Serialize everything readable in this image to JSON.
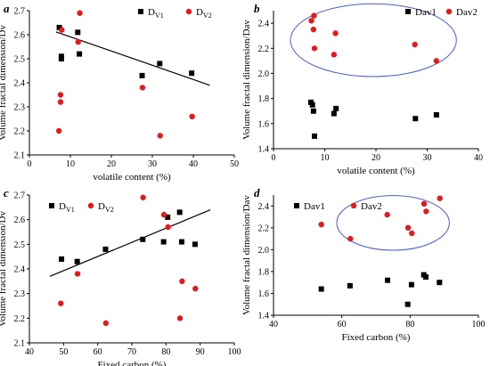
{
  "chart_data": [
    {
      "panel": "a",
      "type": "scatter",
      "xlabel": "volatile content (%)",
      "ylabel": "Volume fractal dimension/Dv",
      "xlim": [
        0,
        50
      ],
      "ylim": [
        2.1,
        2.7
      ],
      "xticks": [
        0,
        10,
        20,
        30,
        40,
        50
      ],
      "yticks": [
        2.1,
        2.2,
        2.3,
        2.4,
        2.5,
        2.6,
        2.7
      ],
      "grid": false,
      "legend": "top-right",
      "series": [
        {
          "name": "DV1",
          "marker": "square",
          "color": "#000000",
          "points": [
            [
              7.3,
              2.63
            ],
            [
              7.8,
              2.51
            ],
            [
              7.8,
              2.5
            ],
            [
              11.8,
              2.61
            ],
            [
              12.2,
              2.52
            ],
            [
              27.5,
              2.43
            ],
            [
              31.8,
              2.48
            ],
            [
              39.6,
              2.44
            ]
          ]
        },
        {
          "name": "DV2",
          "marker": "circle",
          "color": "#e41a1c",
          "points": [
            [
              7.2,
              2.2
            ],
            [
              7.6,
              2.32
            ],
            [
              7.6,
              2.35
            ],
            [
              7.9,
              2.62
            ],
            [
              11.9,
              2.57
            ],
            [
              12.3,
              2.69
            ],
            [
              27.6,
              2.38
            ],
            [
              31.9,
              2.18
            ],
            [
              39.7,
              2.26
            ]
          ]
        }
      ],
      "trendline": {
        "series": "DV1",
        "x": [
          6.5,
          44
        ],
        "y": [
          2.612,
          2.39
        ]
      }
    },
    {
      "panel": "b",
      "type": "scatter",
      "xlabel": "volatile content (%)",
      "ylabel": "Volume fractal dimension/Dav",
      "xlim": [
        0,
        40
      ],
      "ylim": [
        1.4,
        2.5
      ],
      "xticks": [
        0,
        10,
        20,
        30,
        40
      ],
      "yticks": [
        1.4,
        1.6,
        1.8,
        2.0,
        2.2,
        2.4
      ],
      "grid": false,
      "legend": "top-right",
      "series": [
        {
          "name": "Dav1",
          "marker": "square",
          "color": "#000000",
          "points": [
            [
              7.3,
              1.77
            ],
            [
              7.6,
              1.75
            ],
            [
              7.8,
              1.7
            ],
            [
              8.0,
              1.5
            ],
            [
              11.8,
              1.68
            ],
            [
              12.2,
              1.72
            ],
            [
              27.7,
              1.64
            ],
            [
              31.8,
              1.67
            ]
          ]
        },
        {
          "name": "Dav2",
          "marker": "circle",
          "color": "#e41a1c",
          "points": [
            [
              7.4,
              2.42
            ],
            [
              7.8,
              2.35
            ],
            [
              7.9,
              2.46
            ],
            [
              8.0,
              2.2
            ],
            [
              11.8,
              2.15
            ],
            [
              12.1,
              2.32
            ],
            [
              27.6,
              2.23
            ],
            [
              31.8,
              2.1
            ]
          ]
        }
      ],
      "highlight_ellipse": {
        "series": "Dav2",
        "center": [
          19.5,
          2.265
        ],
        "radii": [
          16.2,
          0.29
        ]
      }
    },
    {
      "panel": "c",
      "type": "scatter",
      "xlabel": "Fixed carbon (%)",
      "ylabel": "Volume fractal dimension/Dv",
      "xlim": [
        40,
        100
      ],
      "ylim": [
        2.1,
        2.7
      ],
      "xticks": [
        40,
        50,
        60,
        70,
        80,
        90,
        100
      ],
      "yticks": [
        2.1,
        2.2,
        2.3,
        2.4,
        2.5,
        2.6,
        2.7
      ],
      "grid": false,
      "legend": "top-left",
      "series": [
        {
          "name": "DV1",
          "marker": "square",
          "color": "#000000",
          "points": [
            [
              49.4,
              2.44
            ],
            [
              54.0,
              2.43
            ],
            [
              62.3,
              2.48
            ],
            [
              73.2,
              2.52
            ],
            [
              79.3,
              2.51
            ],
            [
              80.5,
              2.61
            ],
            [
              84.0,
              2.63
            ],
            [
              84.6,
              2.51
            ],
            [
              88.5,
              2.5
            ]
          ]
        },
        {
          "name": "DV2",
          "marker": "circle",
          "color": "#e41a1c",
          "points": [
            [
              49.2,
              2.26
            ],
            [
              54.1,
              2.38
            ],
            [
              62.4,
              2.18
            ],
            [
              73.3,
              2.69
            ],
            [
              79.4,
              2.62
            ],
            [
              80.6,
              2.57
            ],
            [
              84.1,
              2.2
            ],
            [
              84.7,
              2.35
            ],
            [
              88.6,
              2.32
            ]
          ]
        }
      ],
      "trendline": {
        "series": "DV1",
        "x": [
          46,
          93
        ],
        "y": [
          2.37,
          2.64
        ]
      }
    },
    {
      "panel": "d",
      "type": "scatter",
      "xlabel": "Fixed carbon (%)",
      "ylabel": "Volume fractal dimension/Dav",
      "xlim": [
        40,
        100
      ],
      "ylim": [
        1.4,
        2.5
      ],
      "xticks": [
        40,
        60,
        80,
        100
      ],
      "yticks": [
        1.4,
        1.6,
        1.8,
        2.0,
        2.2,
        2.4
      ],
      "grid": false,
      "legend": "top-left",
      "series": [
        {
          "name": "Dav1",
          "marker": "square",
          "color": "#000000",
          "points": [
            [
              54.0,
              1.64
            ],
            [
              62.4,
              1.67
            ],
            [
              73.4,
              1.72
            ],
            [
              79.3,
              1.5
            ],
            [
              80.4,
              1.68
            ],
            [
              84.0,
              1.77
            ],
            [
              84.6,
              1.75
            ],
            [
              88.6,
              1.7
            ]
          ]
        },
        {
          "name": "Dav2",
          "marker": "circle",
          "color": "#e41a1c",
          "points": [
            [
              54.0,
              2.23
            ],
            [
              62.5,
              2.1
            ],
            [
              73.3,
              2.32
            ],
            [
              79.4,
              2.2
            ],
            [
              80.5,
              2.15
            ],
            [
              84.1,
              2.42
            ],
            [
              84.7,
              2.35
            ],
            [
              88.7,
              2.47
            ]
          ]
        }
      ],
      "highlight_ellipse": {
        "series": "Dav2",
        "center": [
          75.0,
          2.245
        ],
        "radii": [
          16.5,
          0.25
        ]
      }
    }
  ]
}
